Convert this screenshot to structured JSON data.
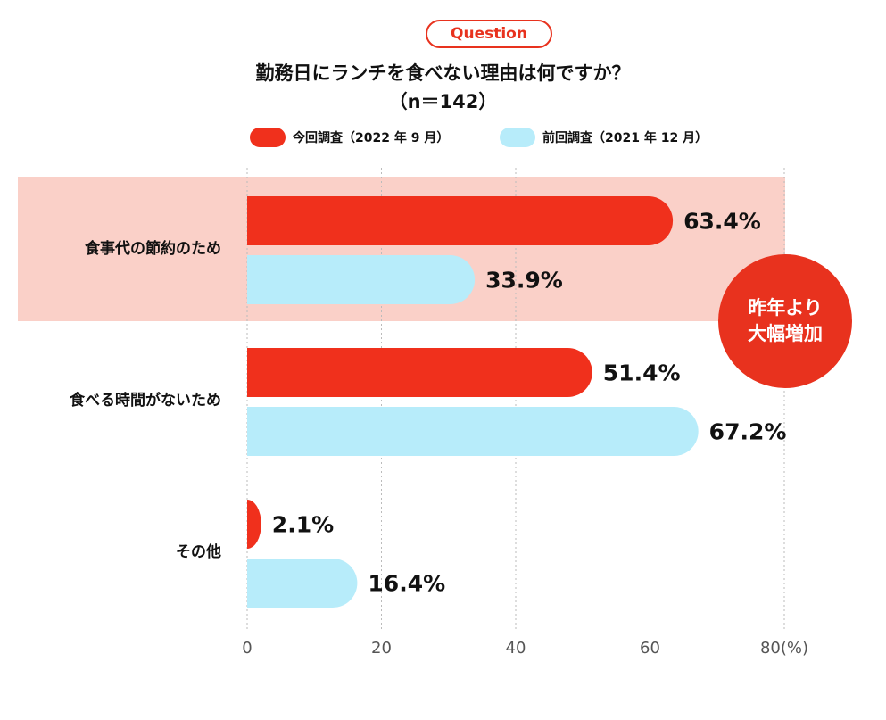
{
  "header": {
    "question_label": "Question",
    "title": "勤務日にランチを食べない理由は何ですか？",
    "sample": "（n＝142）"
  },
  "legend": [
    {
      "label": "今回調査（2022 年 9 月）",
      "color": "#f0301c"
    },
    {
      "label": "前回調査（2021 年 12 月）",
      "color": "#b7ecfa"
    }
  ],
  "callout": {
    "line1": "昨年より",
    "line2": "大幅増加",
    "color": "#e8321e"
  },
  "highlight_color": "#fad0c8",
  "chart_data": {
    "type": "bar",
    "orientation": "horizontal",
    "title": "勤務日にランチを食べない理由は何ですか？",
    "categories": [
      "食事代の節約のため",
      "食べる時間がないため",
      "その他"
    ],
    "series": [
      {
        "name": "今回調査（2022 年 9 月）",
        "values": [
          63.4,
          51.4,
          2.1
        ],
        "color": "#f0301c"
      },
      {
        "name": "前回調査（2021 年 12 月）",
        "values": [
          33.9,
          67.2,
          16.4
        ],
        "color": "#b7ecfa"
      }
    ],
    "value_labels": [
      [
        "63.4%",
        "51.4%",
        "2.1%"
      ],
      [
        "33.9%",
        "67.2%",
        "16.4%"
      ]
    ],
    "xlim": [
      0,
      80
    ],
    "x_ticks": [
      "0",
      "20",
      "40",
      "60",
      "80(%)"
    ],
    "grid": "dotted vertical",
    "legend_position": "top",
    "highlighted_category": "食事代の節約のため"
  }
}
